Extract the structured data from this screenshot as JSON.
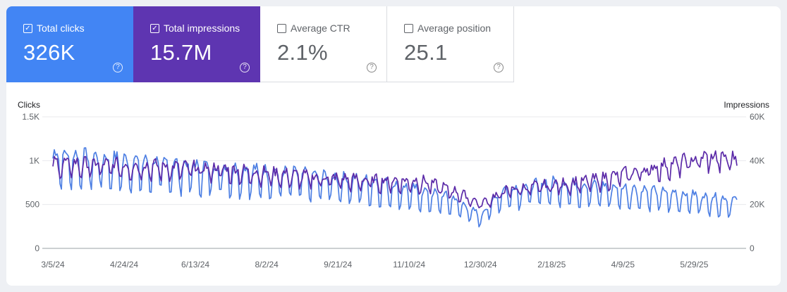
{
  "metrics": [
    {
      "label": "Total clicks",
      "value": "326K",
      "checked": true,
      "check_glyph": "✓",
      "help_glyph": "?"
    },
    {
      "label": "Total impressions",
      "value": "15.7M",
      "checked": true,
      "check_glyph": "✓",
      "help_glyph": "?"
    },
    {
      "label": "Average CTR",
      "value": "2.1%",
      "checked": false,
      "check_glyph": "",
      "help_glyph": "?"
    },
    {
      "label": "Average position",
      "value": "25.1",
      "checked": false,
      "check_glyph": "",
      "help_glyph": "?"
    }
  ],
  "colors": {
    "clicks": "#4d7fe3",
    "impressions": "#5b2aa8",
    "clicks_card": "#4285f4",
    "impressions_card": "#5e35b1"
  },
  "chart_data": {
    "type": "line",
    "left_axis_title": "Clicks",
    "right_axis_title": "Impressions",
    "left_ticks": [
      "0",
      "500",
      "1K",
      "1.5K"
    ],
    "left_tick_values": [
      0,
      500,
      1000,
      1500
    ],
    "right_ticks": [
      "0",
      "20K",
      "40K",
      "60K"
    ],
    "right_tick_values": [
      0,
      20000,
      40000,
      60000
    ],
    "left_ylim": [
      0,
      1500
    ],
    "right_ylim": [
      0,
      60000
    ],
    "x_tick_labels": [
      "3/5/24",
      "4/24/24",
      "6/13/24",
      "8/2/24",
      "9/21/24",
      "11/10/24",
      "12/30/24",
      "2/18/25",
      "4/9/25",
      "5/29/25"
    ],
    "x_tick_days": [
      0,
      50,
      100,
      150,
      200,
      250,
      300,
      350,
      400,
      450
    ],
    "x_range_days": [
      0,
      480
    ],
    "grid": true,
    "series": [
      {
        "name": "Clicks",
        "axis": "left",
        "keyframes": [
          [
            0,
            1000
          ],
          [
            60,
            920
          ],
          [
            120,
            850
          ],
          [
            180,
            780
          ],
          [
            230,
            700
          ],
          [
            280,
            540
          ],
          [
            300,
            350
          ],
          [
            315,
            620
          ],
          [
            350,
            700
          ],
          [
            400,
            640
          ],
          [
            440,
            580
          ],
          [
            480,
            510
          ]
        ],
        "weekly_amplitude": 0.26,
        "x_days_start": 0
      },
      {
        "name": "Impressions",
        "axis": "right",
        "keyframes": [
          [
            0,
            38000
          ],
          [
            60,
            37000
          ],
          [
            120,
            35500
          ],
          [
            180,
            32000
          ],
          [
            220,
            30500
          ],
          [
            260,
            30000
          ],
          [
            285,
            25000
          ],
          [
            300,
            20000
          ],
          [
            320,
            26500
          ],
          [
            350,
            28500
          ],
          [
            380,
            30500
          ],
          [
            420,
            36000
          ],
          [
            460,
            41000
          ],
          [
            480,
            40000
          ]
        ],
        "weekly_amplitude": 0.11,
        "x_days_start": 0
      }
    ]
  }
}
